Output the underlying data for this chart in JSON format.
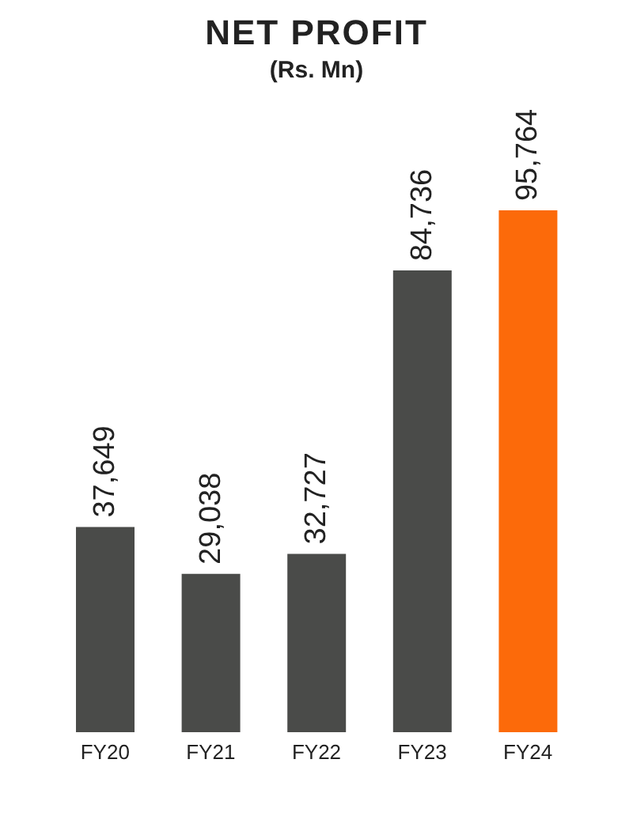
{
  "chart_data": {
    "type": "bar",
    "title": "NET PROFIT",
    "subtitle": "(Rs. Mn)",
    "categories": [
      "FY20",
      "FY21",
      "FY22",
      "FY23",
      "FY24"
    ],
    "values": [
      37649,
      29038,
      32727,
      84736,
      95764
    ],
    "colors": [
      "#4a4b49",
      "#4a4b49",
      "#4a4b49",
      "#4a4b49",
      "#fc6a0a"
    ],
    "value_labels": [
      "37,649",
      "29,038",
      "32,727",
      "84,736",
      "95,764"
    ],
    "grid": false,
    "legend": false
  }
}
